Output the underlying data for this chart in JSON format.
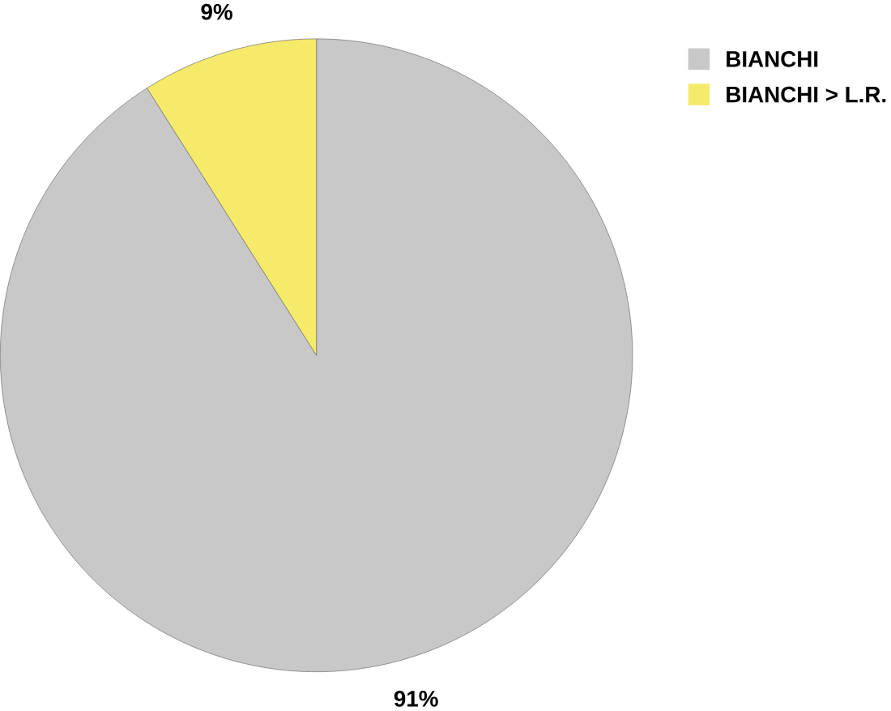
{
  "chart_data": {
    "type": "pie",
    "categories": [
      "BIANCHI",
      "BIANCHI > L.R."
    ],
    "values": [
      91,
      9
    ],
    "colors": [
      "#c8c8c8",
      "#f6ea6a"
    ],
    "value_labels": [
      "91%",
      "9%"
    ],
    "legend": "top right"
  }
}
